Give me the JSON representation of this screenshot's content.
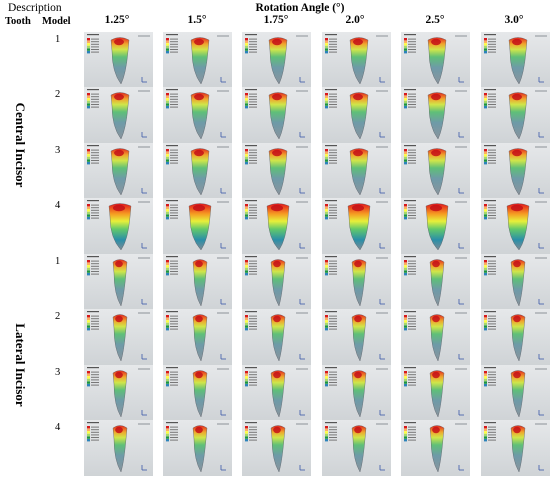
{
  "header": {
    "description": "Description",
    "tooth": "Tooth",
    "model": "Model",
    "rotation": "Rotation Angle (°)",
    "angles": [
      "1.25°",
      "1.5°",
      "1.75°",
      "2.0°",
      "2.5°",
      "3.0°"
    ]
  },
  "groups": [
    {
      "label": "Central Incisor",
      "models": [
        "1",
        "2",
        "3",
        "4"
      ]
    },
    {
      "label": "Lateral Incisor",
      "models": [
        "1",
        "2",
        "3",
        "4"
      ]
    }
  ],
  "legend_colors": [
    "#d7191c",
    "#fdae61",
    "#ffff3f",
    "#a6d96a",
    "#1a9641",
    "#2b83ba"
  ]
}
